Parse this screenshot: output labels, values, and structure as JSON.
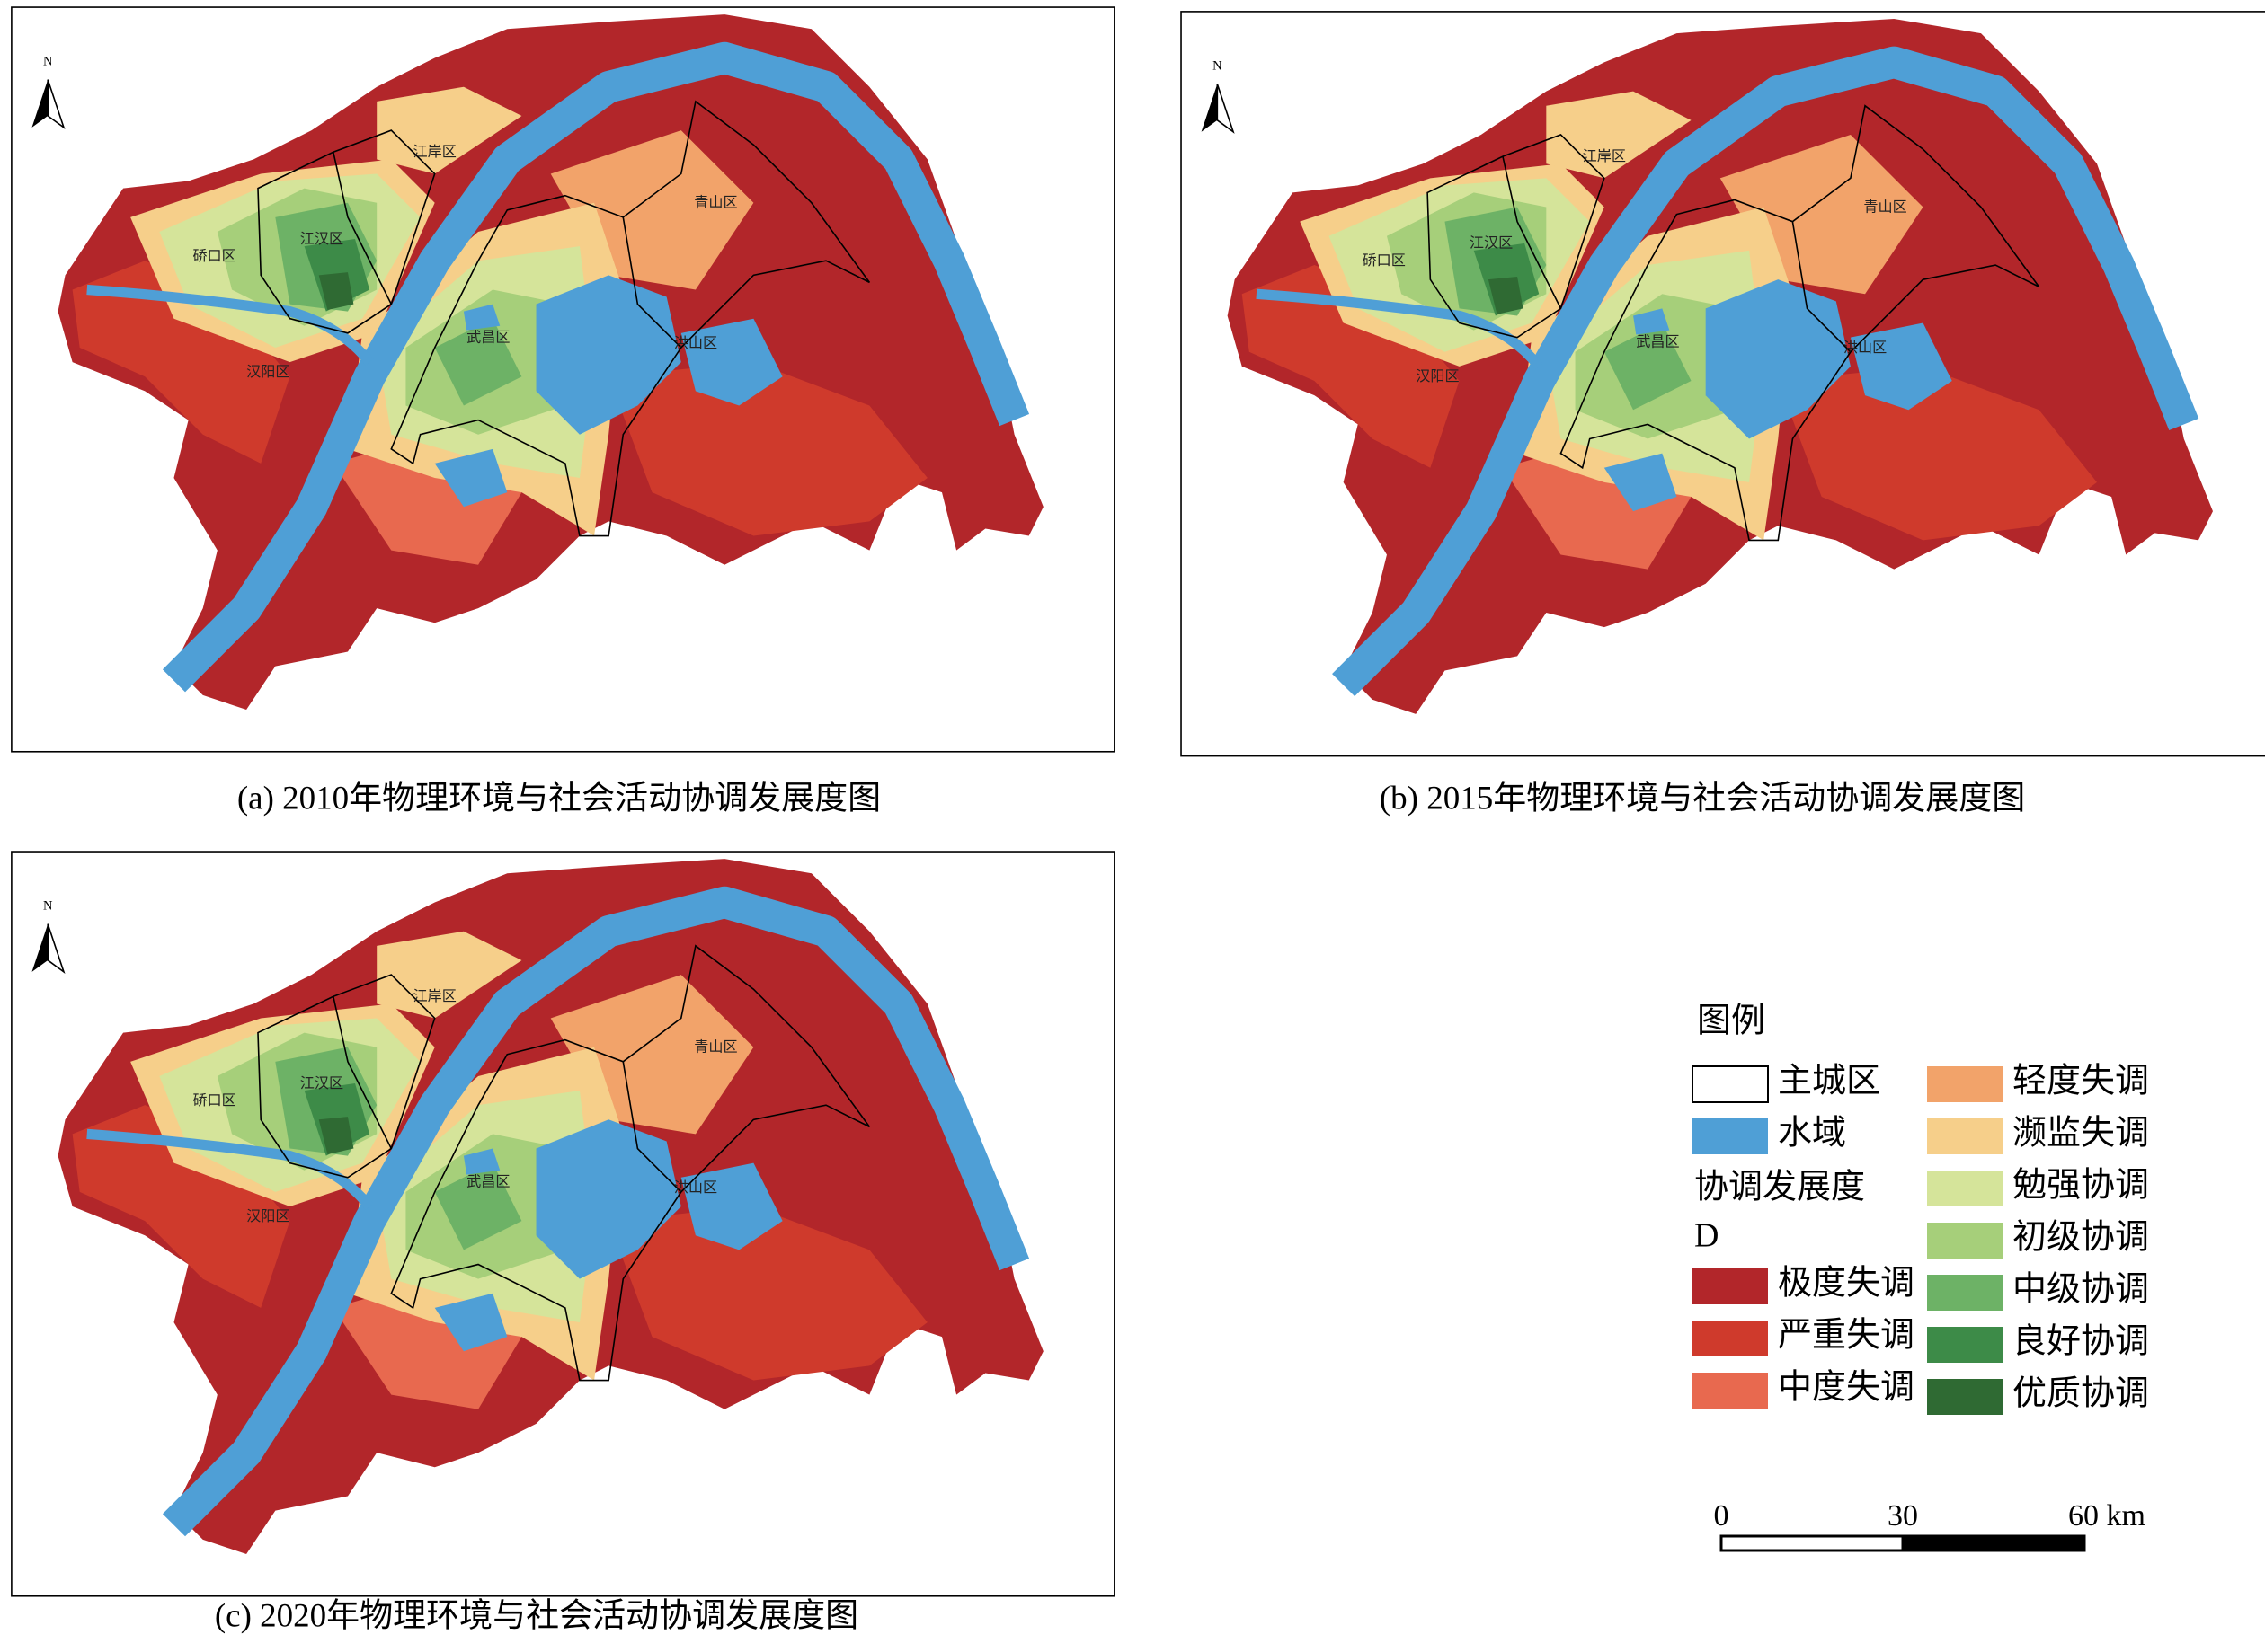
{
  "panels": [
    {
      "caption": "(a) 2010年物理环境与社会活动协调发展度图"
    },
    {
      "caption": "(b) 2015年物理环境与社会活动协调发展度图"
    },
    {
      "caption": "(c) 2020年物理环境与社会活动协调发展度图"
    }
  ],
  "north": "N",
  "districts": [
    "江岸区",
    "江汉区",
    "硚口区",
    "武昌区",
    "青山区",
    "洪山区",
    "汉阳区"
  ],
  "legend": {
    "title": "图例",
    "items": [
      {
        "label": "主城区"
      },
      {
        "label": "水域",
        "color": "#4f9fd6"
      }
    ],
    "group_title": "协调发展度",
    "group_subtitle": "D",
    "classes": [
      {
        "label": "极度失调",
        "color": "#b2262a"
      },
      {
        "label": "严重失调",
        "color": "#cf3a2c"
      },
      {
        "label": "中度失调",
        "color": "#e8694f"
      },
      {
        "label": "轻度失调",
        "color": "#f2a36a"
      },
      {
        "label": "濒监失调",
        "color": "#f6cf8a"
      },
      {
        "label": "勉强协调",
        "color": "#d5e49a"
      },
      {
        "label": "初级协调",
        "color": "#a6cf7a"
      },
      {
        "label": "中级协调",
        "color": "#6db266"
      },
      {
        "label": "良好协调",
        "color": "#3d8b48"
      },
      {
        "label": "优质协调",
        "color": "#2f6a33"
      }
    ]
  },
  "scale_bar": {
    "labels": [
      "0",
      "30",
      "60 km"
    ]
  }
}
